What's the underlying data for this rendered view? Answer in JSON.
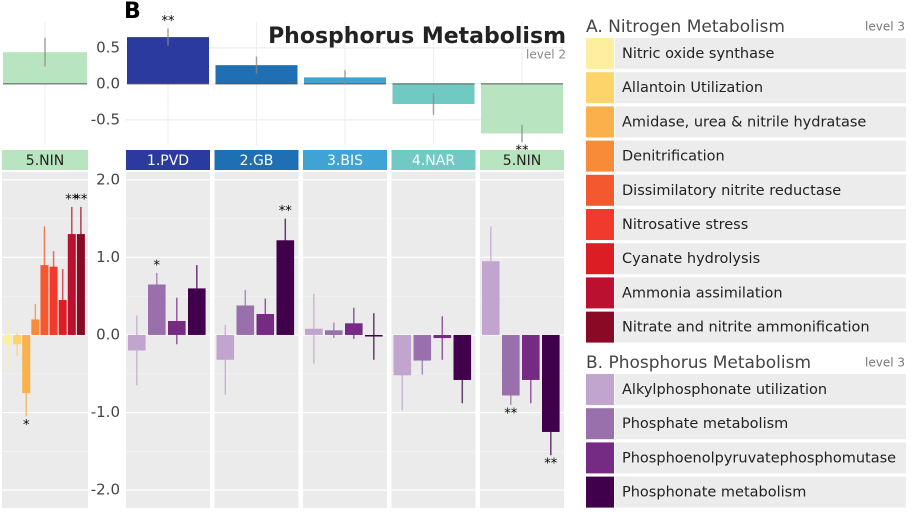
{
  "chart_data": [
    {
      "type": "bar",
      "panel_label": "B",
      "title": "Phosphorus Metabolism",
      "subtitle": "level 2",
      "categories": [
        "1.PVD",
        "2.GB",
        "3.BIS",
        "4.NAR",
        "5.NIN"
      ],
      "values": [
        0.65,
        0.26,
        0.09,
        -0.28,
        -0.69
      ],
      "errors": [
        0.12,
        0.12,
        0.1,
        0.15,
        0.12
      ],
      "significance": [
        "**",
        null,
        null,
        null,
        "**"
      ],
      "colors": [
        "#2b3a9e",
        "#1f6fb5",
        "#3fa3d4",
        "#71c9c4",
        "#b9e4c0"
      ],
      "ylim": [
        -0.85,
        0.86
      ],
      "yticks": [
        0.5,
        {
          "value": 0,
          "label": "0.0"
        },
        -0.5
      ],
      "grid": true
    },
    {
      "type": "facet_bar",
      "legend_title": "B. Phosphorus Metabolism",
      "legend_level": "level 3",
      "series": [
        {
          "name": "Alkylphosphonate utilization",
          "color": "#c2a5cf",
          "values": [
            -0.2,
            -0.32,
            0.08,
            -0.52,
            0.95
          ],
          "errors": [
            0.45,
            0.45,
            0.45,
            0.45,
            0.45
          ],
          "significance": [
            null,
            null,
            null,
            null,
            null
          ]
        },
        {
          "name": "Phosphate metabolism",
          "color": "#9970ab",
          "values": [
            0.65,
            0.38,
            0.06,
            -0.33,
            -0.78
          ],
          "errors": [
            0.15,
            0.2,
            0.1,
            0.18,
            0.12
          ],
          "significance": [
            "*",
            null,
            null,
            null,
            "**"
          ]
        },
        {
          "name": "Phosphoenolpyruvatephosphomutase",
          "color": "#762a83",
          "values": [
            0.18,
            0.27,
            0.15,
            -0.04,
            -0.58
          ],
          "errors": [
            0.3,
            0.2,
            0.2,
            0.28,
            0.3
          ],
          "significance": [
            null,
            null,
            null,
            null,
            null
          ]
        },
        {
          "name": "Phosphonate metabolism",
          "color": "#40004b",
          "values": [
            0.6,
            1.22,
            -0.02,
            -0.58,
            -1.25
          ],
          "errors": [
            0.3,
            0.28,
            0.3,
            0.3,
            0.3
          ],
          "significance": [
            null,
            "**",
            null,
            null,
            "**"
          ]
        }
      ],
      "ylim": [
        -2.23,
        2.1
      ],
      "yticks": [
        {
          "value": 2,
          "label": "2.0"
        },
        {
          "value": 1,
          "label": "1.0"
        },
        {
          "value": 0,
          "label": "0.0"
        },
        {
          "value": -1,
          "label": "-1.0"
        },
        {
          "value": -2,
          "label": "-2.0"
        }
      ],
      "grid": true
    },
    {
      "type": "bar",
      "values": [
        0.44
      ],
      "errors": [
        0.2
      ],
      "color": "#b9e4c0",
      "ylim": [
        -0.85,
        0.86
      ]
    },
    {
      "type": "facet_bar",
      "categories": [
        "5.NIN"
      ],
      "legend_title": "A. Nitrogen Metabolism",
      "legend_level": "level 3",
      "series": [
        {
          "name": "Nitric oxide synthase",
          "color": "#fdeea0",
          "values": [
            -0.12
          ],
          "errors": [
            0.35
          ],
          "significance": [
            null
          ]
        },
        {
          "name": "Allantoin Utilization",
          "color": "#fdd36b",
          "values": [
            -0.12
          ],
          "errors": [
            0.15
          ],
          "significance": [
            null
          ]
        },
        {
          "name": "Amidase, urea & nitrile hydratase",
          "color": "#fbb04b",
          "values": [
            -0.75
          ],
          "errors": [
            0.3
          ],
          "significance": [
            "*"
          ]
        },
        {
          "name": "Denitrification",
          "color": "#f88b3a",
          "values": [
            0.2
          ],
          "errors": [
            0.2
          ],
          "significance": [
            null
          ]
        },
        {
          "name": "Dissimilatory nitrite reductase",
          "color": "#f4582e",
          "values": [
            0.9
          ],
          "errors": [
            0.5
          ],
          "significance": [
            null
          ]
        },
        {
          "name": "Nitrosative stress",
          "color": "#ef3a2d",
          "values": [
            0.88
          ],
          "errors": [
            0.2
          ],
          "significance": [
            null
          ]
        },
        {
          "name": "Cyanate hydrolysis",
          "color": "#dd1d24",
          "values": [
            0.45
          ],
          "errors": [
            0.4
          ],
          "significance": [
            null
          ]
        },
        {
          "name": "Ammonia assimilation",
          "color": "#bb1030",
          "values": [
            1.3
          ],
          "errors": [
            0.35
          ],
          "significance": [
            "**"
          ]
        },
        {
          "name": "Nitrate and nitrite ammonification",
          "color": "#8a0a25",
          "values": [
            1.3
          ],
          "errors": [
            0.35
          ],
          "significance": [
            "**"
          ]
        }
      ],
      "ylim": [
        -2.23,
        2.1
      ]
    }
  ]
}
